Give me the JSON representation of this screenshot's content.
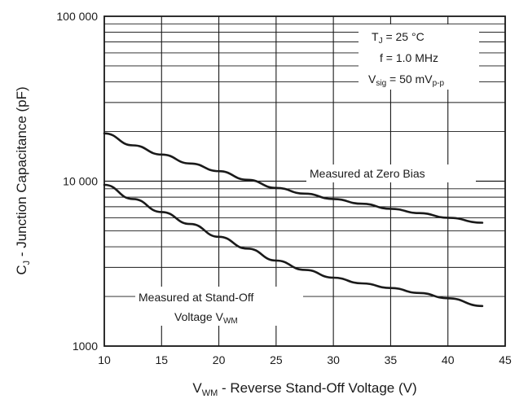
{
  "chart_data": {
    "type": "line",
    "xlabel": {
      "main": "V",
      "sub": "WM",
      "rest": " - Reverse Stand-Off Voltage (V)"
    },
    "ylabel": {
      "main": "C",
      "sub": "J",
      "rest": " - Junction Capacitance (pF)"
    },
    "x_ticks": [
      "10",
      "15",
      "20",
      "25",
      "30",
      "35",
      "40",
      "45"
    ],
    "y_ticks": [
      "1000",
      "10 000",
      "100 000"
    ],
    "xlim": [
      10,
      45
    ],
    "ylim": [
      1000,
      100000
    ],
    "y_scale": "log",
    "grid": true,
    "conditions": {
      "line1": {
        "main": "T",
        "sub": "J",
        "rest": " = 25 °C"
      },
      "line2": {
        "main": "f = 1.0 MHz"
      },
      "line3": {
        "main": "V",
        "sub": "sig",
        "rest": " = 50 mV",
        "sub2": "p-p"
      }
    },
    "series": [
      {
        "label": {
          "main": "Measured at Zero Bias"
        },
        "x": [
          10,
          12.5,
          15,
          17.5,
          20,
          22.5,
          25,
          27.5,
          30,
          32.5,
          35,
          37.5,
          40,
          43
        ],
        "y": [
          19500,
          16500,
          14500,
          12800,
          11500,
          10200,
          9100,
          8400,
          7800,
          7300,
          6800,
          6400,
          6000,
          5600
        ]
      },
      {
        "label": {
          "main": "Measured at Stand-Off",
          "line2_main": "Voltage V",
          "line2_sub": "WM"
        },
        "x": [
          10,
          12.5,
          15,
          17.5,
          20,
          22.5,
          25,
          27.5,
          30,
          32.5,
          35,
          37.5,
          40,
          43
        ],
        "y": [
          9500,
          7800,
          6500,
          5500,
          4600,
          3900,
          3300,
          2900,
          2600,
          2400,
          2250,
          2100,
          1950,
          1750
        ]
      }
    ]
  }
}
